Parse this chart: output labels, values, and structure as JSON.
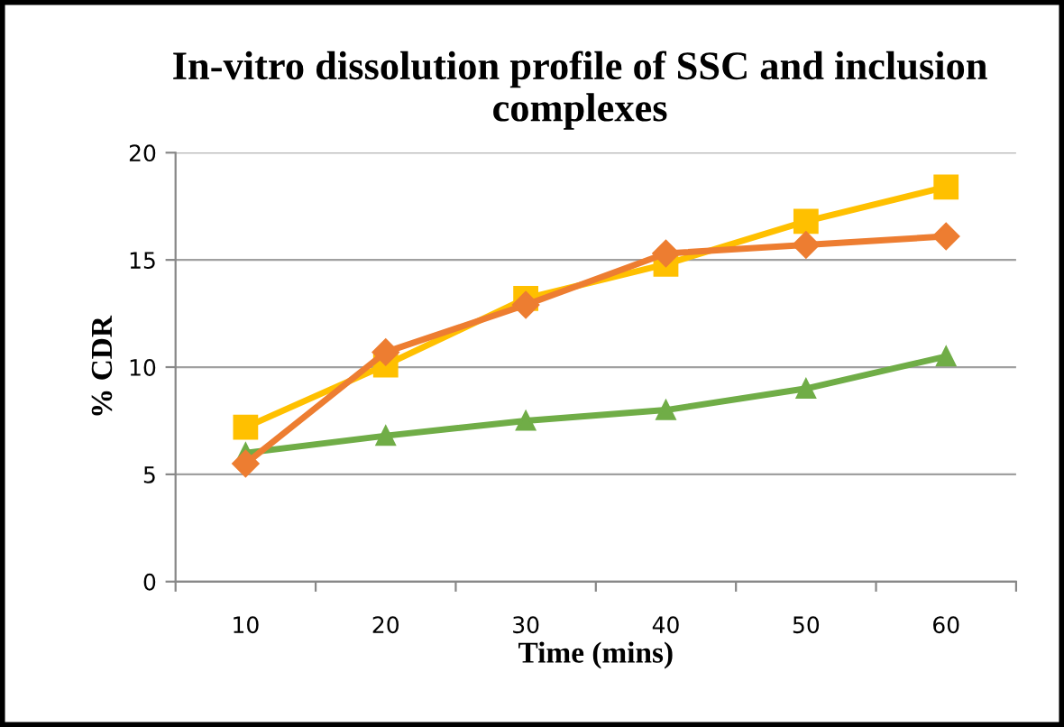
{
  "chart_data": {
    "type": "line",
    "title": "In-vitro dissolution profile of SSC and inclusion complexes",
    "xlabel": "Time (mins)",
    "ylabel": "% CDR",
    "categories": [
      "10",
      "20",
      "30",
      "40",
      "50",
      "60"
    ],
    "series": [
      {
        "color": "#ed7d31",
        "marker": "diamond",
        "values": [
          5.5,
          10.7,
          12.9,
          15.3,
          15.7,
          16.1
        ]
      },
      {
        "color": "#ffc000",
        "marker": "square",
        "values": [
          7.2,
          10.1,
          13.2,
          14.8,
          16.8,
          18.4
        ]
      },
      {
        "color": "#70ad47",
        "marker": "triangle",
        "values": [
          6.0,
          6.8,
          7.5,
          8.0,
          9.0,
          10.5
        ]
      }
    ],
    "ylim": [
      0,
      20
    ],
    "yticks": [
      0,
      5,
      10,
      15,
      20
    ],
    "grid": "y",
    "legend": false,
    "line_style": "solid"
  }
}
